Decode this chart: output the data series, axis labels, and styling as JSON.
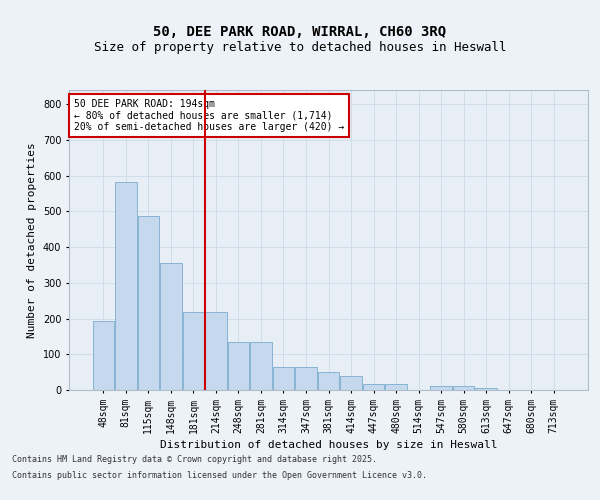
{
  "title1": "50, DEE PARK ROAD, WIRRAL, CH60 3RQ",
  "title2": "Size of property relative to detached houses in Heswall",
  "xlabel": "Distribution of detached houses by size in Heswall",
  "ylabel": "Number of detached properties",
  "categories": [
    "48sqm",
    "81sqm",
    "115sqm",
    "148sqm",
    "181sqm",
    "214sqm",
    "248sqm",
    "281sqm",
    "314sqm",
    "347sqm",
    "381sqm",
    "414sqm",
    "447sqm",
    "480sqm",
    "514sqm",
    "547sqm",
    "580sqm",
    "613sqm",
    "647sqm",
    "680sqm",
    "713sqm"
  ],
  "values": [
    193,
    583,
    487,
    357,
    218,
    218,
    135,
    135,
    65,
    65,
    50,
    40,
    18,
    18,
    0,
    10,
    10,
    5,
    0,
    0,
    0
  ],
  "bar_color": "#c5d8ed",
  "bar_edge_color": "#7aadce",
  "grid_color": "#d0dce8",
  "annotation_text": "50 DEE PARK ROAD: 194sqm\n← 80% of detached houses are smaller (1,714)\n20% of semi-detached houses are larger (420) →",
  "annotation_box_color": "#ffffff",
  "annotation_box_edge": "#cc0000",
  "vline_color": "#cc0000",
  "vline_x_index": 4.5,
  "ylim": [
    0,
    840
  ],
  "yticks": [
    0,
    100,
    200,
    300,
    400,
    500,
    600,
    700,
    800
  ],
  "footer1": "Contains HM Land Registry data © Crown copyright and database right 2025.",
  "footer2": "Contains public sector information licensed under the Open Government Licence v3.0.",
  "bg_color": "#edf2f9",
  "plot_bg_color": "#e8eef6",
  "title_fontsize": 10,
  "subtitle_fontsize": 9,
  "axis_label_fontsize": 8,
  "tick_fontsize": 7,
  "annotation_fontsize": 7,
  "footer_fontsize": 6
}
